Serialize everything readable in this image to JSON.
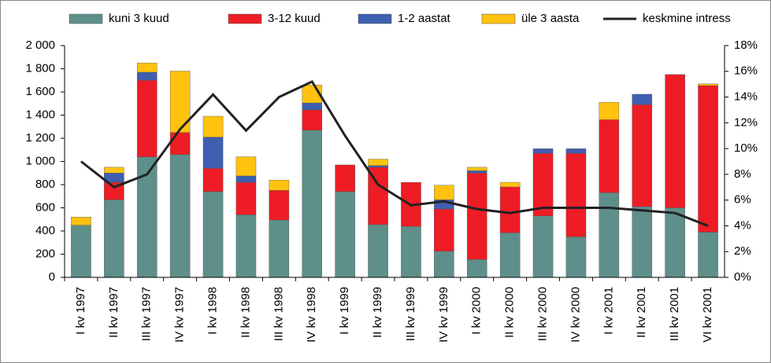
{
  "chart_data": {
    "type": "bar",
    "stacked": true,
    "categories": [
      "I kv 1997",
      "II kv 1997",
      "III kv 1997",
      "IV kv 1997",
      "I kv 1998",
      "II kv 1998",
      "III kv 1998",
      "IV kv 1998",
      "I kv 1999",
      "II kv 1999",
      "III kv 1999",
      "IV kv 1999",
      "I kv 2000",
      "II kv 2000",
      "III kv 2000",
      "IV kv 2000",
      "I kv 2001",
      "II kv 2001",
      "III kv 2001",
      "VI kv 2001"
    ],
    "series": [
      {
        "name": "kuni 3 kuud",
        "color": "#5f8f8a",
        "values": [
          450,
          670,
          1040,
          1060,
          740,
          540,
          495,
          1270,
          740,
          455,
          440,
          225,
          155,
          385,
          530,
          350,
          730,
          610,
          600,
          390
        ]
      },
      {
        "name": "3-12 kuud",
        "color": "#ee1c25",
        "values": [
          0,
          150,
          660,
          190,
          200,
          280,
          255,
          175,
          230,
          495,
          380,
          365,
          745,
          395,
          540,
          720,
          630,
          880,
          1150,
          1265
        ]
      },
      {
        "name": "1-2 aastat",
        "color": "#3e5fb0",
        "values": [
          0,
          80,
          70,
          0,
          270,
          55,
          0,
          60,
          0,
          15,
          0,
          80,
          20,
          0,
          40,
          40,
          0,
          90,
          0,
          0
        ]
      },
      {
        "name": "üle 3 aasta",
        "color": "#ffc20e",
        "values": [
          70,
          50,
          80,
          530,
          180,
          165,
          90,
          155,
          0,
          55,
          0,
          125,
          30,
          40,
          0,
          0,
          150,
          0,
          0,
          15
        ]
      },
      {
        "name": "keskmine intress",
        "color": "#222222",
        "type": "line",
        "axis": "y2",
        "values": [
          9.0,
          7.0,
          8.0,
          11.5,
          14.2,
          11.4,
          14.0,
          15.2,
          11.0,
          7.2,
          5.6,
          5.9,
          5.3,
          5.0,
          5.4,
          5.4,
          5.4,
          5.2,
          5.0,
          4.0
        ]
      }
    ],
    "ylim": [
      0,
      2000
    ],
    "yticks": [
      0,
      200,
      400,
      600,
      800,
      {
        "value": 1000,
        "label": "1 000"
      },
      {
        "value": 1200,
        "label": "1 200"
      },
      {
        "value": 1400,
        "label": "1 400"
      },
      {
        "value": 1600,
        "label": "1 600"
      },
      {
        "value": 1800,
        "label": "1 800"
      },
      {
        "value": 2000,
        "label": "2 000"
      }
    ],
    "y2lim": [
      0,
      18
    ],
    "y2ticks": [
      {
        "value": 0,
        "label": "0%"
      },
      {
        "value": 2,
        "label": "2%"
      },
      {
        "value": 4,
        "label": "4%"
      },
      {
        "value": 6,
        "label": "6%"
      },
      {
        "value": 8,
        "label": "8%"
      },
      {
        "value": 10,
        "label": "10%"
      },
      {
        "value": 12,
        "label": "12%"
      },
      {
        "value": 14,
        "label": "14%"
      },
      {
        "value": 16,
        "label": "16%"
      },
      {
        "value": 18,
        "label": "18%"
      }
    ],
    "grid": false
  }
}
